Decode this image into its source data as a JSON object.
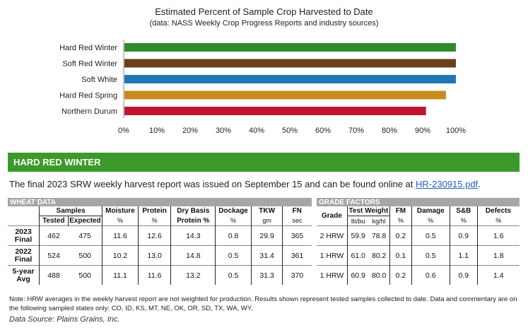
{
  "chart_data": {
    "type": "bar",
    "orientation": "horizontal",
    "title": "Estimated Percent of Sample Crop Harvested to Date",
    "subtitle": "(data: NASS Weekly Crop Progress Reports and industry sources)",
    "categories": [
      "Hard Red Winter",
      "Soft Red Winter",
      "Soft White",
      "Hard Red Spring",
      "Northern Durum"
    ],
    "values": [
      100,
      100,
      100,
      97,
      91
    ],
    "colors": [
      "#2e8b2e",
      "#6b3f1a",
      "#1f77b4",
      "#c98a1e",
      "#c0152f"
    ],
    "x_ticks": [
      "0%",
      "10%",
      "20%",
      "30%",
      "40%",
      "50%",
      "60%",
      "70%",
      "80%",
      "90%",
      "100%"
    ],
    "xlim": [
      0,
      100
    ],
    "grid": false
  },
  "section": {
    "banner": "HARD RED WINTER",
    "report_text": "The final 2023 SRW weekly harvest report was issued on September 15 and can be found online at ",
    "report_link": "HR-230915.pdf",
    "report_end": "."
  },
  "wheat_table": {
    "header": "WHEAT DATA",
    "samples_label": "Samples",
    "tested_label": "Tested",
    "expected_label": "Expected",
    "moisture_label": "Moisture",
    "protein_label": "Protein",
    "drybasis_label": "Dry Basis",
    "drybasis_sub": "Protein %",
    "dockage_label": "Dockage",
    "tkw_label": "TKW",
    "fn_label": "FN",
    "unit_pct": "%",
    "unit_gm": "gm",
    "unit_sec": "sec",
    "rows": [
      {
        "l1": "2023",
        "l2": "Final",
        "tested": "462",
        "expected": "475",
        "moisture": "11.6",
        "protein": "12.6",
        "drybasis": "14.3",
        "dockage": "0.8",
        "tkw": "29.9",
        "fn": "365"
      },
      {
        "l1": "2022",
        "l2": "Final",
        "tested": "524",
        "expected": "500",
        "moisture": "10.2",
        "protein": "13.0",
        "drybasis": "14.8",
        "dockage": "0.5",
        "tkw": "31.4",
        "fn": "361"
      },
      {
        "l1": "5-year",
        "l2": "Avg",
        "tested": "488",
        "expected": "500",
        "moisture": "11.1",
        "protein": "11.6",
        "drybasis": "13.2",
        "dockage": "0.5",
        "tkw": "31.3",
        "fn": "370"
      }
    ]
  },
  "grade_table": {
    "header": "GRADE FACTORS",
    "grade_label": "Grade",
    "testweight_label": "Test Weight",
    "lbbu": "lb/bu",
    "kghl": "kg/hl",
    "fm_label": "FM",
    "damage_label": "Damage",
    "sb_label": "S&B",
    "defects_label": "Defects",
    "unit_pct": "%",
    "rows": [
      {
        "grade": "2 HRW",
        "lbbu": "59.9",
        "kghl": "78.8",
        "fm": "0.2",
        "damage": "0.5",
        "sb": "0.9",
        "defects": "1.6"
      },
      {
        "grade": "1 HRW",
        "lbbu": "61.0",
        "kghl": "80.2",
        "fm": "0.1",
        "damage": "0.5",
        "sb": "1.1",
        "defects": "1.8"
      },
      {
        "grade": "1 HRW",
        "lbbu": "60.9",
        "kghl": "80.0",
        "fm": "0.2",
        "damage": "0.6",
        "sb": "0.9",
        "defects": "1.4"
      }
    ]
  },
  "footer": {
    "note": "Note: HRW averages in the weekly harvest report are not weighted for production. Results shown represent tested samples collected to date. Data and commentary are on the following sampled states only: CO, ID, KS, MT, NE, OK, OR, SD, TX, WA, WY.",
    "source": "Data Source:  Plains Grains, Inc."
  }
}
